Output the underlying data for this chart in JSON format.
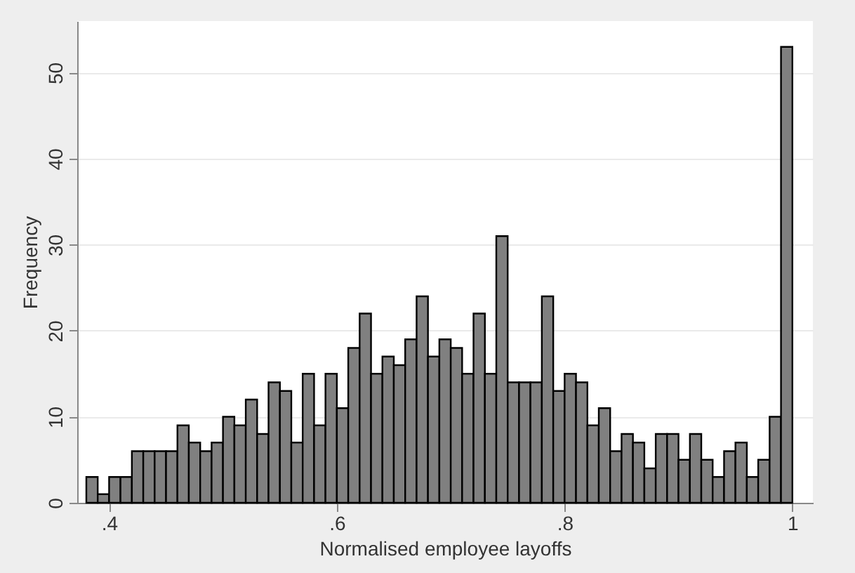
{
  "chart_data": {
    "type": "histogram",
    "xlabel": "Normalised employee layoffs",
    "ylabel": "Frequency",
    "bins": [
      0.38,
      0.39,
      0.4,
      0.41,
      0.42,
      0.43,
      0.44,
      0.45,
      0.46,
      0.47,
      0.48,
      0.49,
      0.5,
      0.51,
      0.52,
      0.53,
      0.54,
      0.55,
      0.56,
      0.57,
      0.58,
      0.59,
      0.6,
      0.61,
      0.62,
      0.63,
      0.64,
      0.65,
      0.66,
      0.67,
      0.68,
      0.69,
      0.7,
      0.71,
      0.72,
      0.73,
      0.74,
      0.75,
      0.76,
      0.77,
      0.78,
      0.79,
      0.8,
      0.81,
      0.82,
      0.83,
      0.84,
      0.85,
      0.86,
      0.87,
      0.88,
      0.89,
      0.9,
      0.91,
      0.92,
      0.93,
      0.94,
      0.95,
      0.96,
      0.97,
      0.98,
      0.99,
      1.0
    ],
    "values": [
      3,
      1,
      3,
      3,
      6,
      6,
      6,
      6,
      9,
      7,
      6,
      7,
      10,
      9,
      12,
      8,
      14,
      13,
      7,
      15,
      9,
      15,
      11,
      18,
      22,
      15,
      17,
      16,
      19,
      24,
      17,
      19,
      18,
      15,
      22,
      15,
      31,
      14,
      14,
      14,
      24,
      13,
      15,
      14,
      9,
      11,
      6,
      8,
      7,
      4,
      8,
      8,
      5,
      8,
      5,
      3,
      6,
      7,
      3,
      5,
      10,
      53
    ],
    "color": "#808080",
    "xlim": [
      0.372,
      1.018
    ],
    "xticks": [
      {
        "value": 0.4,
        "label": ".4"
      },
      {
        "value": 0.6,
        "label": ".6"
      },
      {
        "value": 0.8,
        "label": ".8"
      },
      1
    ],
    "ylim": [
      0,
      56
    ],
    "yticks": [
      0,
      10,
      20,
      30,
      40,
      50
    ],
    "grid": "y"
  }
}
